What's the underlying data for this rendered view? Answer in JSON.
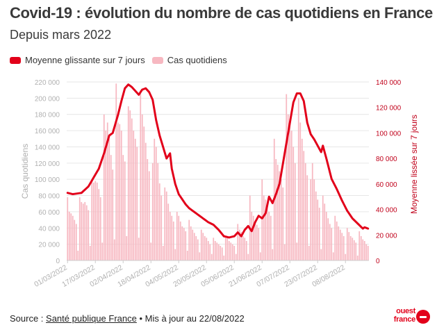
{
  "header": {
    "title": "Covid-19 : évolution du nombre de cas quotidiens en France",
    "subtitle": "Depuis mars 2022"
  },
  "legend": {
    "line_label": "Moyenne glissante sur 7 jours",
    "bar_label": "Cas quotidiens"
  },
  "footer": {
    "source_prefix": "Source : ",
    "source_link": "Santé publique France",
    "update_text": " • Mis à jour au 22/08/2022"
  },
  "logo": {
    "line1": "ouest",
    "line2": "france"
  },
  "colors": {
    "line": "#e2001a",
    "bar": "#f7b8c1",
    "grid": "#e6e6e6",
    "axis_text": "#b0b0b0",
    "right_axis_text": "#c0001a"
  },
  "chart_data": {
    "type": "bar+line",
    "title": "Covid-19 : évolution du nombre de cas quotidiens en France",
    "ylabel_left": "Cas quotidiens",
    "ylabel_right": "Moyenne lissée sur 7 jours",
    "ylim_left": [
      0,
      220000
    ],
    "ylim_right": [
      0,
      140000
    ],
    "left_ticks": [
      0,
      20000,
      40000,
      60000,
      80000,
      100000,
      120000,
      140000,
      160000,
      180000,
      200000,
      220000
    ],
    "left_tick_labels": [
      "0",
      "20 000",
      "40 000",
      "60 000",
      "80 000",
      "100 000",
      "120 000",
      "140 000",
      "160 000",
      "180 000",
      "200 000",
      "220 000"
    ],
    "right_ticks": [
      0,
      20000,
      40000,
      60000,
      80000,
      100000,
      120000,
      140000
    ],
    "right_tick_labels": [
      "0",
      "20 000",
      "40 000",
      "60 000",
      "80 000",
      "100 000",
      "120 000",
      "140 000"
    ],
    "x_tick_labels": [
      "01/03/2022",
      "17/03/2022",
      "02/04/2022",
      "18/04/2022",
      "04/05/2022",
      "20/05/2022",
      "05/06/2022",
      "21/06/2022",
      "07/07/2022",
      "23/07/2022",
      "08/08/2022"
    ],
    "x_tick_every_days": 16,
    "start_date": "01/03/2022",
    "end_date": "21/08/2022",
    "day_count": 174,
    "daily_key_points": [
      [
        0,
        78000
      ],
      [
        1,
        60000
      ],
      [
        2,
        58000
      ],
      [
        3,
        55000
      ],
      [
        4,
        50000
      ],
      [
        5,
        45000
      ],
      [
        6,
        12000
      ],
      [
        7,
        78000
      ],
      [
        8,
        72000
      ],
      [
        9,
        70000
      ],
      [
        10,
        72000
      ],
      [
        11,
        68000
      ],
      [
        12,
        62000
      ],
      [
        13,
        18000
      ],
      [
        14,
        100000
      ],
      [
        15,
        96000
      ],
      [
        16,
        98000
      ],
      [
        17,
        96000
      ],
      [
        18,
        88000
      ],
      [
        19,
        78000
      ],
      [
        20,
        22000
      ],
      [
        21,
        180000
      ],
      [
        22,
        160000
      ],
      [
        23,
        170000
      ],
      [
        24,
        150000
      ],
      [
        25,
        130000
      ],
      [
        26,
        112000
      ],
      [
        27,
        26000
      ],
      [
        28,
        218000
      ],
      [
        29,
        170000
      ],
      [
        30,
        168000
      ],
      [
        31,
        160000
      ],
      [
        32,
        130000
      ],
      [
        33,
        122000
      ],
      [
        34,
        30000
      ],
      [
        35,
        190000
      ],
      [
        36,
        185000
      ],
      [
        37,
        175000
      ],
      [
        38,
        160000
      ],
      [
        39,
        150000
      ],
      [
        40,
        140000
      ],
      [
        41,
        28000
      ],
      [
        42,
        210000
      ],
      [
        43,
        180000
      ],
      [
        44,
        165000
      ],
      [
        45,
        145000
      ],
      [
        46,
        125000
      ],
      [
        47,
        110000
      ],
      [
        48,
        22000
      ],
      [
        49,
        120000
      ],
      [
        50,
        150000
      ],
      [
        51,
        140000
      ],
      [
        52,
        120000
      ],
      [
        53,
        95000
      ],
      [
        54,
        80000
      ],
      [
        55,
        18000
      ],
      [
        56,
        90000
      ],
      [
        57,
        85000
      ],
      [
        58,
        70000
      ],
      [
        59,
        60000
      ],
      [
        60,
        55000
      ],
      [
        61,
        48000
      ],
      [
        62,
        14000
      ],
      [
        63,
        60000
      ],
      [
        64,
        55000
      ],
      [
        65,
        48000
      ],
      [
        66,
        42000
      ],
      [
        67,
        40000
      ],
      [
        68,
        36000
      ],
      [
        69,
        12000
      ],
      [
        70,
        50000
      ],
      [
        71,
        42000
      ],
      [
        72,
        38000
      ],
      [
        73,
        34000
      ],
      [
        74,
        30000
      ],
      [
        75,
        26000
      ],
      [
        76,
        10000
      ],
      [
        77,
        38000
      ],
      [
        78,
        34000
      ],
      [
        79,
        30000
      ],
      [
        80,
        28000
      ],
      [
        81,
        24000
      ],
      [
        82,
        20000
      ],
      [
        83,
        8000
      ],
      [
        84,
        28000
      ],
      [
        85,
        24000
      ],
      [
        86,
        22000
      ],
      [
        87,
        20000
      ],
      [
        88,
        18000
      ],
      [
        89,
        16000
      ],
      [
        90,
        6000
      ],
      [
        91,
        30000
      ],
      [
        92,
        28000
      ],
      [
        93,
        24000
      ],
      [
        94,
        22000
      ],
      [
        95,
        20000
      ],
      [
        96,
        18000
      ],
      [
        97,
        8000
      ],
      [
        98,
        45000
      ],
      [
        99,
        38000
      ],
      [
        100,
        35000
      ],
      [
        101,
        30000
      ],
      [
        102,
        28000
      ],
      [
        103,
        24000
      ],
      [
        104,
        8000
      ],
      [
        105,
        80000
      ],
      [
        106,
        60000
      ],
      [
        107,
        55000
      ],
      [
        108,
        48000
      ],
      [
        109,
        44000
      ],
      [
        110,
        40000
      ],
      [
        111,
        10000
      ],
      [
        112,
        100000
      ],
      [
        113,
        80000
      ],
      [
        114,
        75000
      ],
      [
        115,
        68000
      ],
      [
        116,
        60000
      ],
      [
        117,
        55000
      ],
      [
        118,
        14000
      ],
      [
        119,
        150000
      ],
      [
        120,
        125000
      ],
      [
        121,
        118000
      ],
      [
        122,
        110000
      ],
      [
        123,
        100000
      ],
      [
        124,
        90000
      ],
      [
        125,
        20000
      ],
      [
        126,
        205000
      ],
      [
        127,
        180000
      ],
      [
        128,
        172000
      ],
      [
        129,
        160000
      ],
      [
        130,
        140000
      ],
      [
        131,
        120000
      ],
      [
        132,
        22000
      ],
      [
        133,
        200000
      ],
      [
        134,
        170000
      ],
      [
        135,
        150000
      ],
      [
        136,
        135000
      ],
      [
        137,
        120000
      ],
      [
        138,
        105000
      ],
      [
        139,
        18000
      ],
      [
        140,
        100000
      ],
      [
        141,
        120000
      ],
      [
        142,
        100000
      ],
      [
        143,
        85000
      ],
      [
        144,
        75000
      ],
      [
        145,
        65000
      ],
      [
        146,
        14000
      ],
      [
        147,
        80000
      ],
      [
        148,
        70000
      ],
      [
        149,
        60000
      ],
      [
        150,
        52000
      ],
      [
        151,
        45000
      ],
      [
        152,
        40000
      ],
      [
        153,
        10000
      ],
      [
        154,
        55000
      ],
      [
        155,
        48000
      ],
      [
        156,
        42000
      ],
      [
        157,
        38000
      ],
      [
        158,
        34000
      ],
      [
        159,
        30000
      ],
      [
        160,
        8000
      ],
      [
        161,
        40000
      ],
      [
        162,
        35000
      ],
      [
        163,
        30000
      ],
      [
        164,
        28000
      ],
      [
        165,
        25000
      ],
      [
        166,
        22000
      ],
      [
        167,
        6000
      ],
      [
        168,
        36000
      ],
      [
        169,
        30000
      ],
      [
        170,
        26000
      ],
      [
        171,
        24000
      ],
      [
        172,
        20000
      ],
      [
        173,
        18000
      ]
    ],
    "rolling_key_points": [
      [
        0,
        53000
      ],
      [
        3,
        52000
      ],
      [
        8,
        53000
      ],
      [
        12,
        58000
      ],
      [
        15,
        65000
      ],
      [
        18,
        72000
      ],
      [
        21,
        84000
      ],
      [
        24,
        98000
      ],
      [
        26,
        100000
      ],
      [
        29,
        114000
      ],
      [
        31,
        125000
      ],
      [
        33,
        135000
      ],
      [
        35,
        138000
      ],
      [
        37,
        136000
      ],
      [
        39,
        133000
      ],
      [
        41,
        130000
      ],
      [
        43,
        134000
      ],
      [
        45,
        135000
      ],
      [
        47,
        132000
      ],
      [
        49,
        126000
      ],
      [
        51,
        110000
      ],
      [
        53,
        98000
      ],
      [
        55,
        89000
      ],
      [
        57,
        80000
      ],
      [
        59,
        84000
      ],
      [
        60,
        72000
      ],
      [
        62,
        60000
      ],
      [
        64,
        52000
      ],
      [
        66,
        48000
      ],
      [
        68,
        44000
      ],
      [
        70,
        41000
      ],
      [
        72,
        39000
      ],
      [
        75,
        36000
      ],
      [
        78,
        33000
      ],
      [
        81,
        30000
      ],
      [
        84,
        28000
      ],
      [
        87,
        24000
      ],
      [
        90,
        19000
      ],
      [
        93,
        18000
      ],
      [
        96,
        19000
      ],
      [
        98,
        22000
      ],
      [
        100,
        19000
      ],
      [
        102,
        24000
      ],
      [
        104,
        27000
      ],
      [
        106,
        23000
      ],
      [
        108,
        30000
      ],
      [
        110,
        35000
      ],
      [
        112,
        33000
      ],
      [
        114,
        37000
      ],
      [
        116,
        50000
      ],
      [
        118,
        45000
      ],
      [
        120,
        52000
      ],
      [
        122,
        60000
      ],
      [
        124,
        76000
      ],
      [
        126,
        92000
      ],
      [
        128,
        108000
      ],
      [
        130,
        124000
      ],
      [
        132,
        131000
      ],
      [
        134,
        131000
      ],
      [
        136,
        125000
      ],
      [
        138,
        108000
      ],
      [
        140,
        99000
      ],
      [
        142,
        95000
      ],
      [
        144,
        90000
      ],
      [
        146,
        85000
      ],
      [
        147,
        90000
      ],
      [
        149,
        80000
      ],
      [
        152,
        64000
      ],
      [
        155,
        56000
      ],
      [
        158,
        47000
      ],
      [
        161,
        39000
      ],
      [
        164,
        33000
      ],
      [
        167,
        29000
      ],
      [
        170,
        25000
      ],
      [
        171,
        26000
      ],
      [
        173,
        25000
      ]
    ]
  }
}
